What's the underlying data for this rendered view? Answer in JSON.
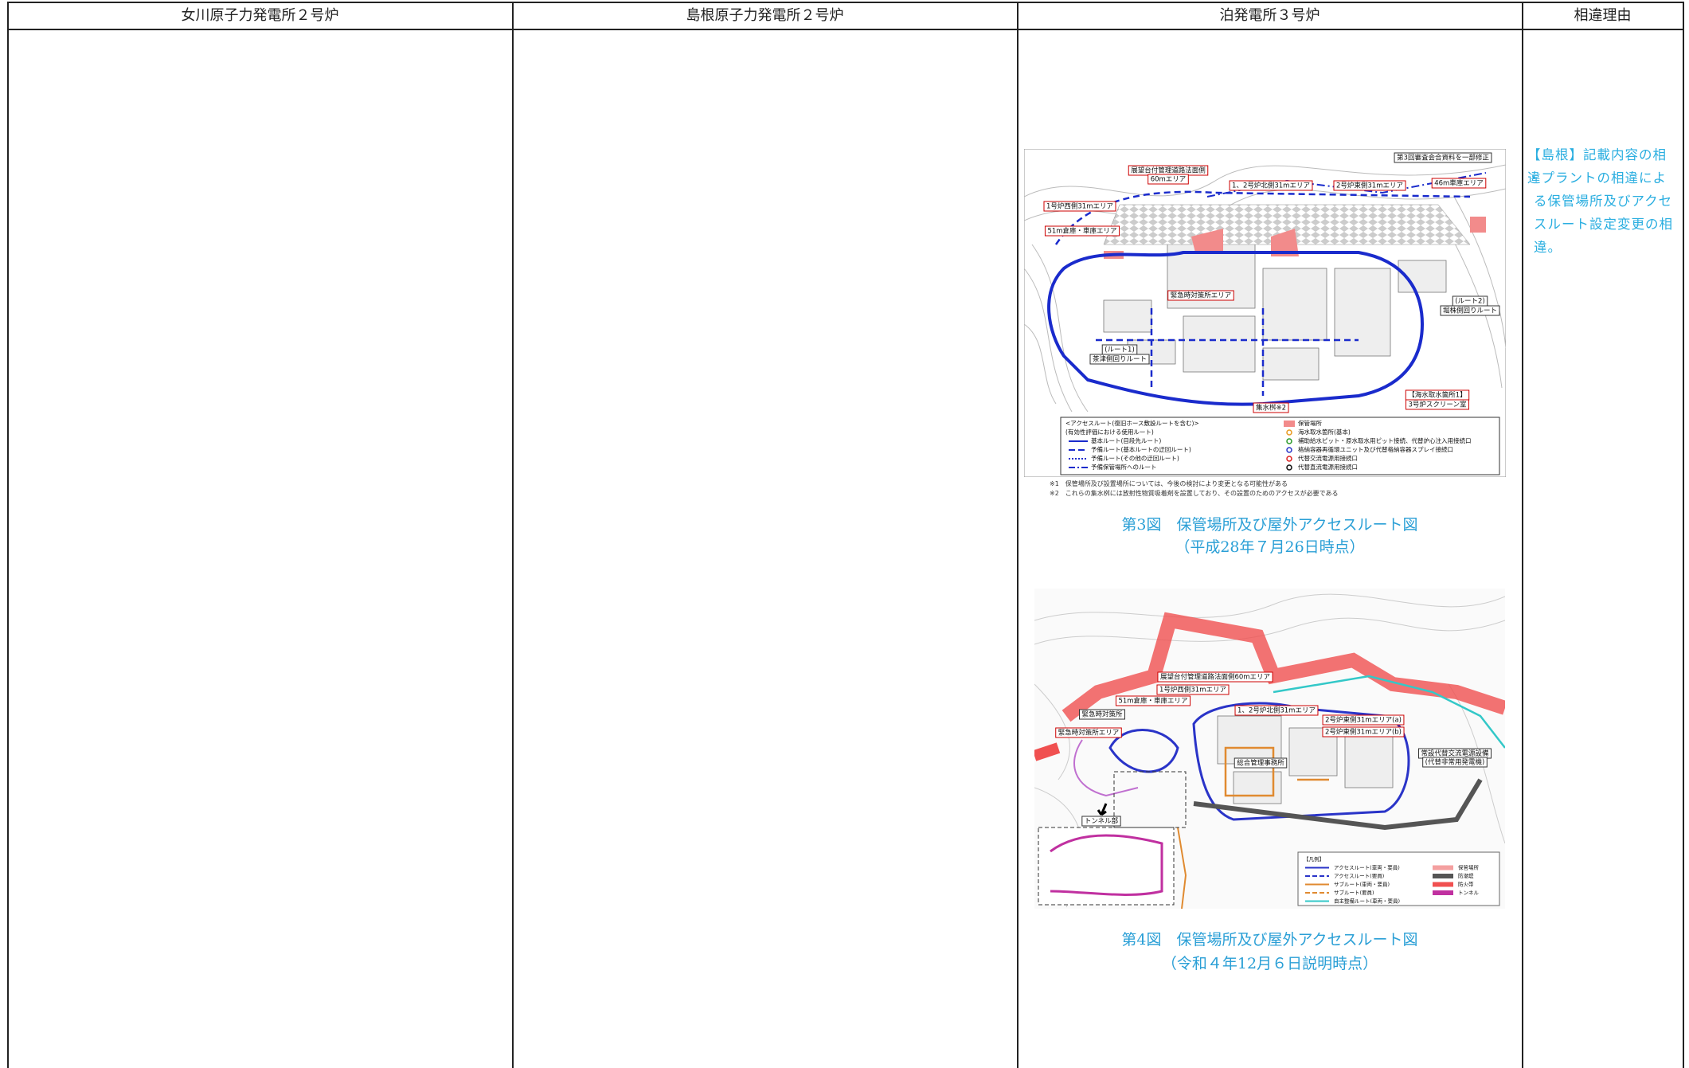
{
  "table": {
    "headers": [
      "女川原子力発電所２号炉",
      "島根原子力発電所２号炉",
      "泊発電所３号炉",
      "相違理由"
    ],
    "column3": {
      "figures": [
        {
          "labels": [
            "第3回審査会合資料を一部修正",
            "展望台付管理道路法面側",
            "60mエリア",
            "1、2号炉北側31mエリア",
            "2号炉東側31mエリア",
            "46m車庫エリア",
            "1号炉西側31mエリア",
            "51m倉庫・車庫エリア",
            "緊急時対策所エリア",
            "(ルート2)",
            "堀株側回りルート",
            "(ルート1)",
            "茶津側回りルート",
            "【海水取水箇所1】",
            "3号炉スクリーン室",
            "集水桝※2"
          ],
          "legend": [
            "<アクセスルート(復旧ホース敷設ルートを含む)>",
            "(有効性評価における使用ルート)",
            "基本ルート(目段先ルート)",
            "予備ルート(基本ルートの迂回ルート)",
            "予備ルート(その他の迂回ルート)",
            "予備保管場所へのルート",
            "保管場所",
            "海水取水箇所(基本)",
            "補助給水ピット・原水取水用ピット接続、代替炉心注入用接続口",
            "格納容器再循環ユニット及び代替格納容器スプレイ接続口",
            "代替交流電源用接続口",
            "代替直流電源用接続口"
          ],
          "footnotes": [
            "※1　保管場所及び設置場所については、今後の検討により変更となる可能性がある",
            "※2　これらの集水桝には放射性物質吸着剤を設置しており、その設置のためのアクセスが必要である"
          ],
          "caption": "第3図　保管場所及び屋外アクセスルート図",
          "date": "（平成28年７月26日時点）"
        },
        {
          "labels": [
            "展望台付管理道路法面側60mエリア",
            "1号炉西側31mエリア",
            "51m倉庫・車庫エリア",
            "1、2号炉北側31mエリア",
            "緊急時対策所",
            "2号炉東側31mエリア(a)",
            "2号炉東側31mエリア(b)",
            "緊急時対策所エリア",
            "総合管理事務所",
            "常設代替交流電源設備",
            "(代替非常用発電機)",
            "トンネル部"
          ],
          "legend": [
            "【凡例】",
            "アクセスルート(車両・要員)",
            "アクセスルート(要員)",
            "サブルート(車両・要員)",
            "サブルート(要員)",
            "自主整備ルート(車両・要員)",
            "保管場所",
            "防潮堤",
            "防火帯",
            "トンネル"
          ],
          "caption": "第4図　保管場所及び屋外アクセスルート図",
          "date": "（令和４年12月６日説明時点）"
        }
      ]
    },
    "column4": {
      "notes": [
        "【島根】記載内容の相違",
        "・プラントの相違による保管場所及びアクセスルート設定変更の相違。"
      ]
    }
  }
}
